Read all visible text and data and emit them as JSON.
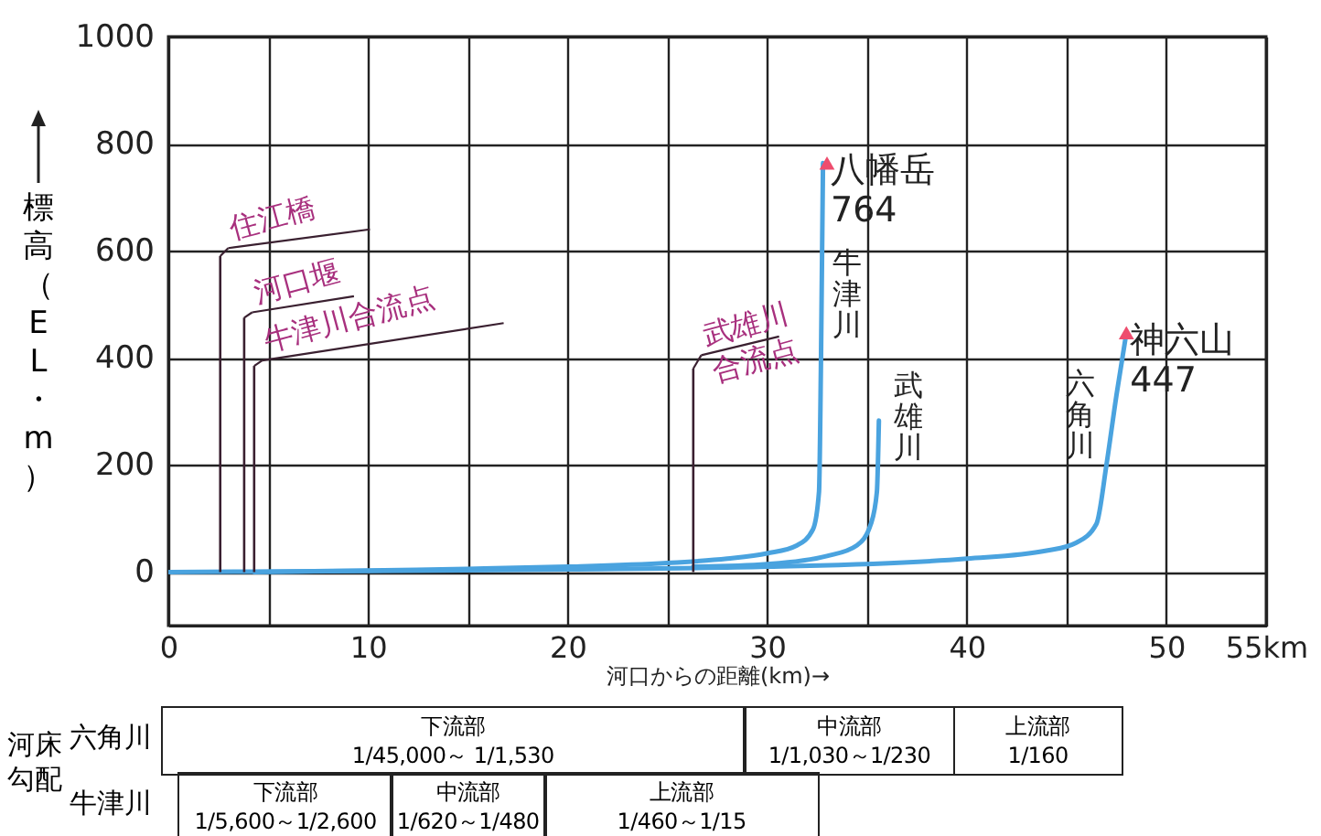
{
  "chart_data": {
    "type": "line",
    "xlabel": "河口からの距離(km)→",
    "ylabel": "標高（EL・m）",
    "xlim": [
      0,
      55
    ],
    "ylim": [
      -100,
      1000
    ],
    "xticks": [
      0,
      {
        "value": 5,
        "label": null
      },
      10,
      {
        "value": 15,
        "label": null
      },
      20,
      {
        "value": 25,
        "label": null
      },
      30,
      {
        "value": 35,
        "label": null
      },
      40,
      {
        "value": 45,
        "label": null
      },
      50,
      {
        "value": 55,
        "label": "55km"
      }
    ],
    "yticks": [
      0,
      200,
      400,
      600,
      800,
      1000
    ],
    "grid": true,
    "line_style": "solid",
    "series": [
      {
        "name": "牛津川",
        "color": "#4aa3df",
        "x": [
          4.3,
          10,
          15,
          20,
          25,
          28,
          30,
          31.5,
          32.3,
          32.6,
          32.7,
          32.8
        ],
        "values": [
          0,
          3,
          6,
          10,
          17,
          25,
          35,
          50,
          80,
          150,
          400,
          764
        ]
      },
      {
        "name": "武雄川",
        "color": "#4aa3df",
        "x": [
          26.3,
          30,
          33,
          34.5,
          35.2,
          35.5,
          35.6
        ],
        "values": [
          10,
          15,
          30,
          50,
          90,
          150,
          283
        ]
      },
      {
        "name": "六角川",
        "color": "#4aa3df",
        "x": [
          0,
          10,
          20,
          30,
          40,
          44,
          45.5,
          46.5,
          47,
          47.5,
          48
        ],
        "values": [
          0,
          2,
          5,
          10,
          25,
          40,
          55,
          90,
          200,
          330,
          447
        ]
      }
    ],
    "annotations": [
      {
        "text": "住江橋",
        "x": 2.6,
        "y": 0
      },
      {
        "text": "河口堰",
        "x": 3.8,
        "y": 0
      },
      {
        "text": "牛津川合流点",
        "x": 4.3,
        "y": 0
      },
      {
        "text": "武雄川合流点",
        "x": 26.3,
        "y": 0
      },
      {
        "text": "八幡岳\n764",
        "x": 33,
        "y": 764
      },
      {
        "text": "神六山\n447",
        "x": 48,
        "y": 447
      },
      "河床勾配",
      "六角川",
      "下流部\n1/45,000～ 1/1,530",
      "中流部\n1/1,030～1/230",
      "上流部\n1/160",
      "牛津川",
      "下流部\n1/5,600～1/2,600",
      "中流部\n1/620～1/480",
      "上流部\n1/460～1/15"
    ]
  }
}
